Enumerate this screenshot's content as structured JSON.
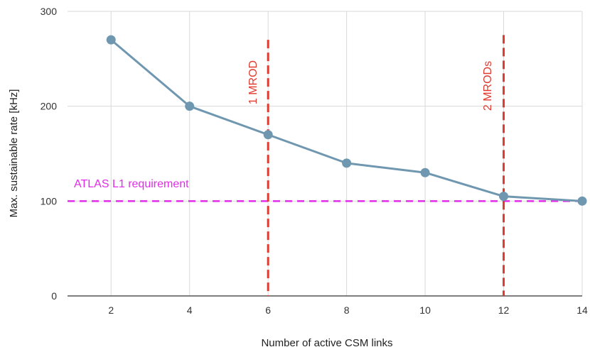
{
  "chart_data": {
    "type": "line",
    "xlabel": "Number of active CSM links",
    "ylabel": "Max. sustainable rate [kHz]",
    "x": [
      2,
      4,
      6,
      8,
      10,
      12,
      14
    ],
    "series": [
      {
        "values": [
          270,
          200,
          170,
          140,
          130,
          105,
          100
        ],
        "color": "#6f97b0"
      }
    ],
    "xlim": [
      1,
      14
    ],
    "ylim": [
      0,
      300
    ],
    "x_ticks": [
      2,
      4,
      6,
      8,
      10,
      12,
      14
    ],
    "y_ticks": [
      0,
      100,
      200,
      300
    ],
    "grid": true,
    "annotations": {
      "hline": {
        "y": 100,
        "label": "ATLAS L1 requirement",
        "color": "#e12de8",
        "style": "dashed"
      },
      "vlines": [
        {
          "x": 6,
          "label": "1 MROD",
          "color": "#e0392e",
          "style": "dashed",
          "y_top": 270
        },
        {
          "x": 12,
          "label": "2 MRODs",
          "color": "#e0392e",
          "style": "dashed",
          "y_top": 275
        }
      ]
    }
  }
}
